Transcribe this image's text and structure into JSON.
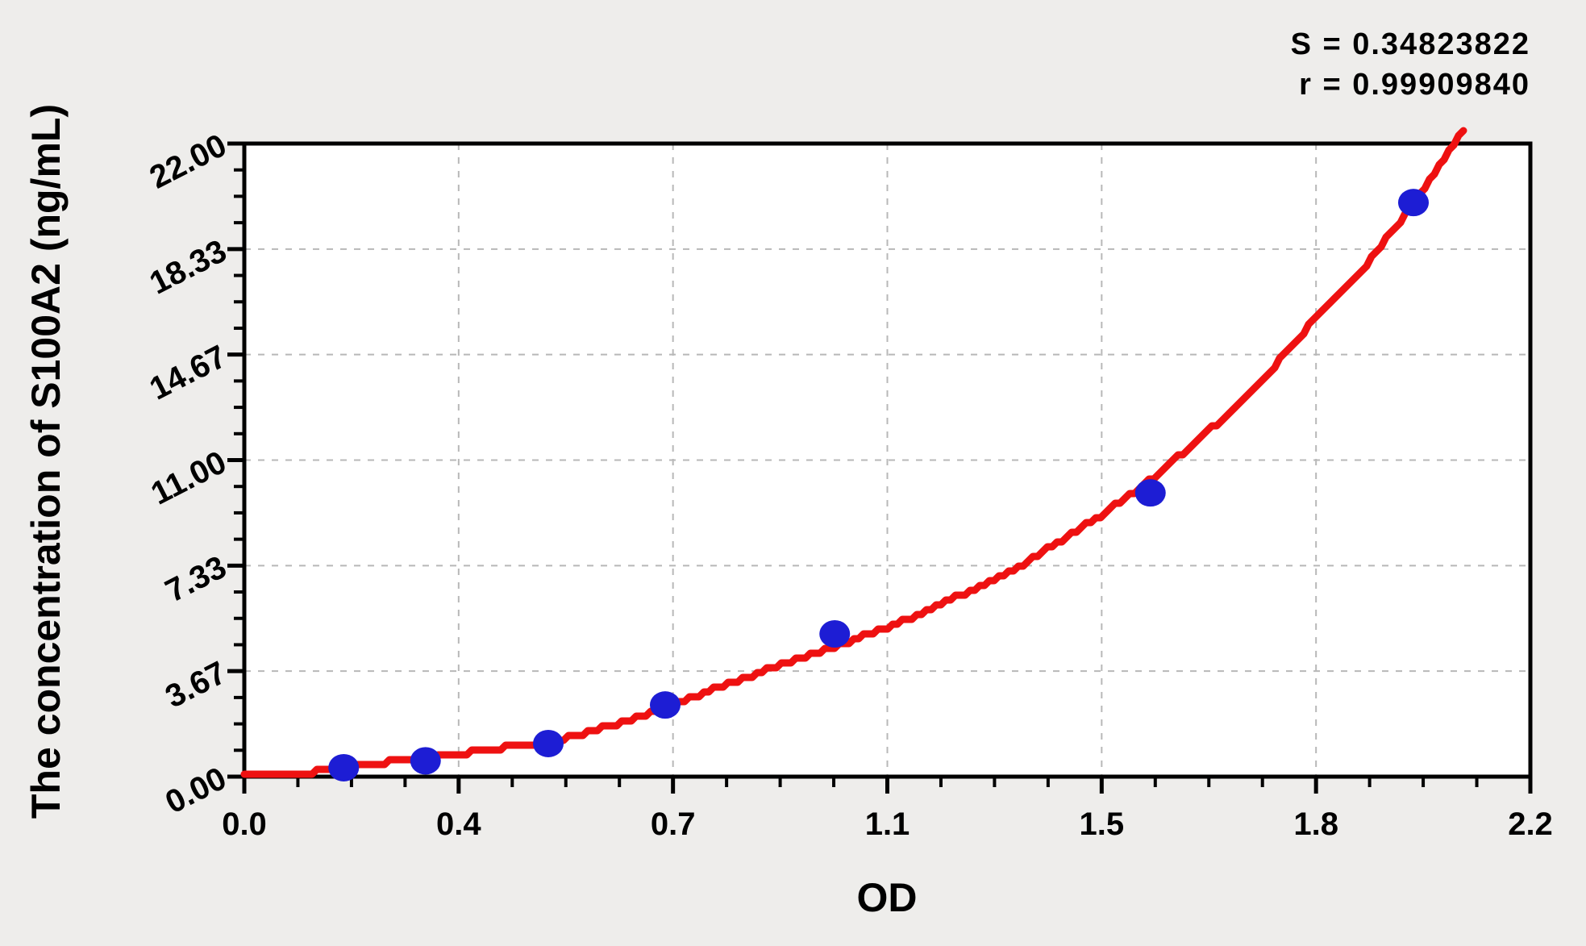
{
  "page": {
    "background_color": "#EEEDEB",
    "plot_background_color": "#FFFFFF"
  },
  "annotations": {
    "s_line": "S = 0.34823822",
    "r_line": "r = 0.99909840"
  },
  "axes": {
    "x_title": "OD",
    "y_title": "The concentration of S100A2 (ng/mL)"
  },
  "chart_data": {
    "type": "scatter",
    "title": "",
    "xlabel": "OD",
    "ylabel": "The concentration of S100A2 (ng/mL)",
    "xlim": [
      0,
      2.2
    ],
    "ylim": [
      0,
      22
    ],
    "x_tick_labels": [
      "0.0",
      "0.4",
      "0.7",
      "1.1",
      "1.5",
      "1.8",
      "2.2"
    ],
    "y_tick_labels": [
      "0.00",
      "3.67",
      "7.33",
      "11.00",
      "14.67",
      "18.33",
      "22.00"
    ],
    "x_minor_divisions": 4,
    "y_minor_divisions": 4,
    "grid": {
      "show": true,
      "style": "dashed",
      "color": "#B8B8B8"
    },
    "legend": "none",
    "fit_stats": {
      "S": "0.34823822",
      "r": "0.99909840"
    },
    "colors": {
      "point": "#1D1DD4",
      "curve": "#EE1111",
      "axis": "#000000"
    },
    "series": [
      {
        "name": "standard-points",
        "type": "scatter",
        "color": "#1D1DD4",
        "x": [
          0.17,
          0.31,
          0.52,
          0.72,
          1.01,
          1.55,
          2.0
        ],
        "y": [
          0.31,
          0.55,
          1.15,
          2.49,
          4.96,
          9.86,
          19.95
        ]
      },
      {
        "name": "fitted-curve",
        "type": "line",
        "color": "#EE1111",
        "x": [
          0.0,
          0.12,
          0.17,
          0.31,
          0.4,
          0.52,
          0.6,
          0.72,
          0.85,
          1.01,
          1.15,
          1.31,
          1.46,
          1.55,
          1.7,
          1.78,
          1.83,
          1.92,
          2.0,
          2.05,
          2.09
        ],
        "y": [
          0.05,
          0.15,
          0.38,
          0.62,
          0.9,
          1.18,
          1.6,
          2.4,
          3.4,
          4.5,
          5.6,
          7.1,
          9.0,
          10.3,
          12.9,
          14.67,
          15.9,
          17.8,
          19.9,
          21.4,
          22.6
        ]
      }
    ]
  }
}
